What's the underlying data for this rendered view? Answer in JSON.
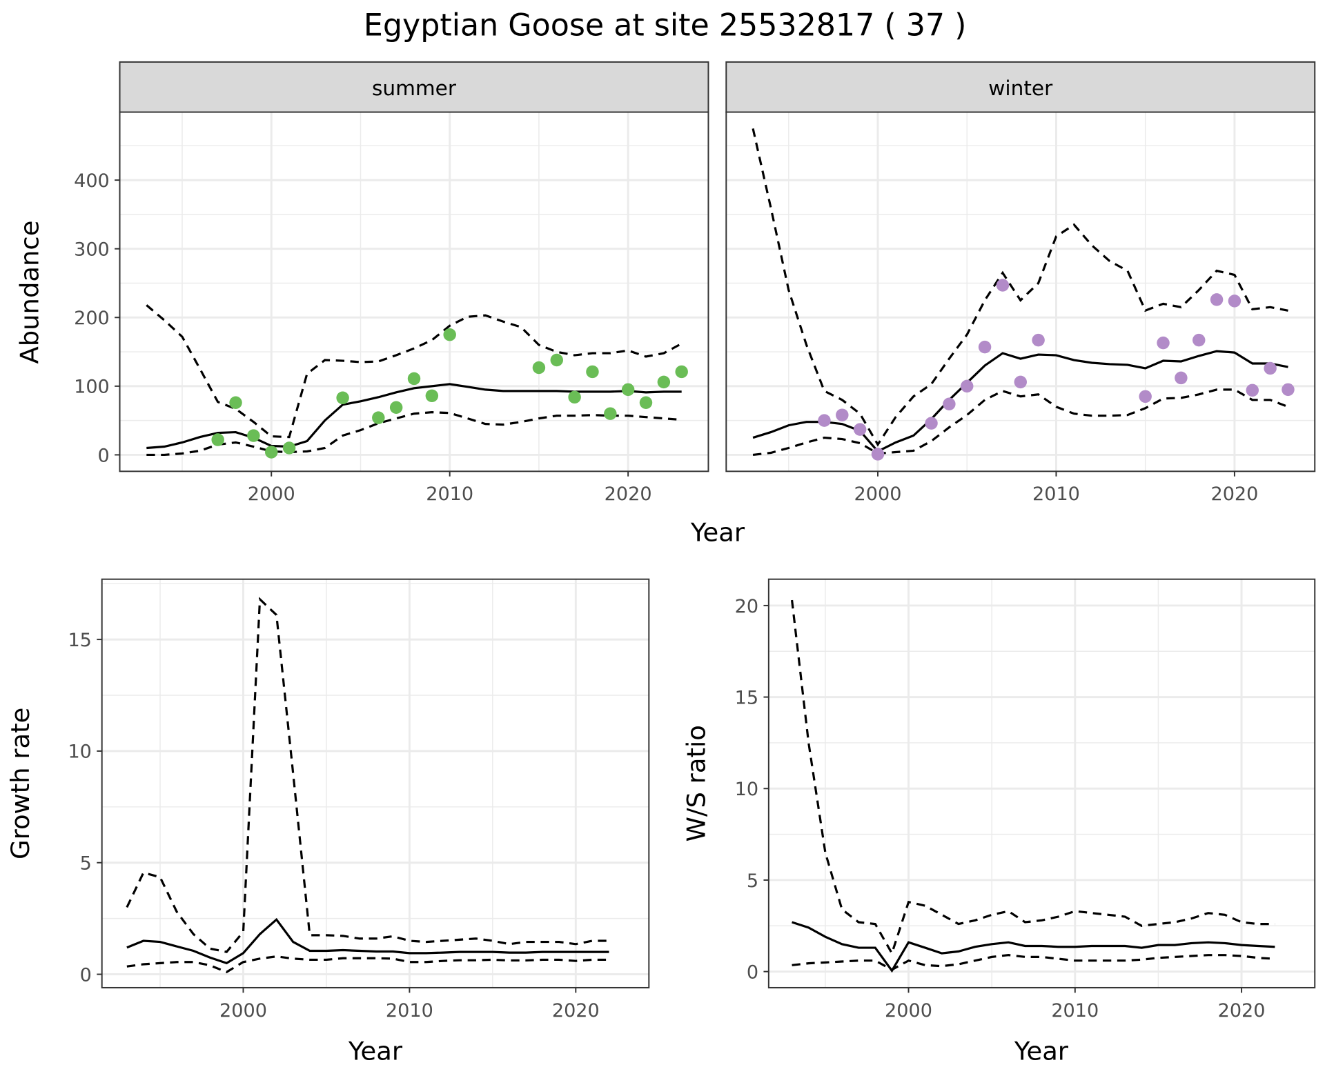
{
  "title": "Egyptian Goose at site 25532817 ( 37 )",
  "colors": {
    "summer_points": "#6ABD56",
    "winter_points": "#B28BC8",
    "lines": "#000000",
    "strip_fill": "#D9D9D9",
    "grid": "#EBEBEB"
  },
  "chart_data": [
    {
      "type": "line+scatter",
      "facet": "summer",
      "xlabel": "Year",
      "ylabel": "Abundance",
      "xlim": [
        1991.5,
        2024.5
      ],
      "ylim": [
        -24,
        499
      ],
      "xticks": [
        2000,
        2010,
        2020
      ],
      "yticks": [
        0,
        100,
        200,
        300,
        400
      ],
      "grid": true,
      "point_color": "#6ABD56",
      "points": {
        "x": [
          1997,
          1998,
          1999,
          2000,
          2001,
          2004,
          2006,
          2007,
          2008,
          2009,
          2010,
          2015,
          2016,
          2017,
          2018,
          2019,
          2020,
          2021,
          2022,
          2023
        ],
        "y": [
          22,
          76,
          28,
          4,
          10,
          83,
          54,
          69,
          111,
          86,
          175,
          127,
          138,
          84,
          121,
          60,
          95,
          76,
          106,
          121
        ]
      },
      "x": [
        1993,
        1994,
        1995,
        1996,
        1997,
        1998,
        1999,
        2000,
        2001,
        2002,
        2003,
        2004,
        2005,
        2006,
        2007,
        2008,
        2009,
        2010,
        2011,
        2012,
        2013,
        2014,
        2015,
        2016,
        2017,
        2018,
        2019,
        2020,
        2021,
        2022,
        2023
      ],
      "mean": [
        10,
        12,
        18,
        26,
        32,
        33,
        25,
        13,
        12,
        20,
        50,
        73,
        78,
        84,
        91,
        97,
        100,
        103,
        99,
        95,
        93,
        93,
        93,
        93,
        92,
        92,
        92,
        93,
        91,
        92,
        92
      ],
      "upper": [
        218,
        196,
        172,
        125,
        77,
        67,
        48,
        27,
        26,
        118,
        138,
        137,
        135,
        136,
        145,
        155,
        167,
        188,
        201,
        203,
        194,
        186,
        160,
        150,
        145,
        148,
        148,
        152,
        143,
        148,
        162
      ],
      "lower": [
        0,
        0,
        2,
        6,
        15,
        18,
        12,
        5,
        4,
        5,
        10,
        28,
        36,
        46,
        53,
        60,
        62,
        61,
        53,
        45,
        44,
        48,
        53,
        57,
        57,
        58,
        57,
        57,
        55,
        53,
        51
      ]
    },
    {
      "type": "line+scatter",
      "facet": "winter",
      "xlabel": "Year",
      "ylabel": "Abundance",
      "xlim": [
        1991.5,
        2024.5
      ],
      "ylim": [
        -24,
        499
      ],
      "xticks": [
        2000,
        2010,
        2020
      ],
      "yticks": [
        0,
        100,
        200,
        300,
        400
      ],
      "grid": true,
      "point_color": "#B28BC8",
      "points": {
        "x": [
          1997,
          1998,
          1999,
          2000,
          2003,
          2004,
          2005,
          2006,
          2007,
          2008,
          2009,
          2015,
          2016,
          2017,
          2018,
          2019,
          2020,
          2021,
          2022,
          2023
        ],
        "y": [
          50,
          58,
          37,
          1,
          46,
          74,
          100,
          157,
          247,
          106,
          167,
          85,
          163,
          112,
          167,
          226,
          224,
          94,
          126,
          95
        ]
      },
      "x": [
        1993,
        1994,
        1995,
        1996,
        1997,
        1998,
        1999,
        2000,
        2001,
        2002,
        2003,
        2004,
        2005,
        2006,
        2007,
        2008,
        2009,
        2010,
        2011,
        2012,
        2013,
        2014,
        2015,
        2016,
        2017,
        2018,
        2019,
        2020,
        2021,
        2022,
        2023
      ],
      "mean": [
        25,
        33,
        43,
        48,
        48,
        45,
        35,
        5,
        18,
        28,
        52,
        80,
        105,
        130,
        148,
        140,
        146,
        145,
        138,
        134,
        132,
        131,
        126,
        137,
        136,
        144,
        151,
        149,
        133,
        133,
        128
      ],
      "upper": [
        475,
        360,
        240,
        160,
        93,
        80,
        60,
        15,
        55,
        85,
        103,
        140,
        175,
        225,
        265,
        225,
        250,
        318,
        335,
        305,
        282,
        268,
        210,
        220,
        215,
        240,
        268,
        262,
        212,
        215,
        210
      ],
      "lower": [
        0,
        3,
        10,
        18,
        25,
        23,
        17,
        2,
        4,
        6,
        20,
        40,
        58,
        80,
        93,
        85,
        88,
        70,
        60,
        57,
        57,
        58,
        68,
        82,
        83,
        88,
        95,
        95,
        80,
        80,
        70
      ]
    },
    {
      "type": "line",
      "xlabel": "Year",
      "ylabel": "Growth rate",
      "xlim": [
        1991.5,
        2024.4
      ],
      "ylim": [
        -0.6,
        17.7
      ],
      "xticks": [
        2000,
        2010,
        2020
      ],
      "yticks": [
        0,
        5,
        10,
        15
      ],
      "grid": true,
      "x": [
        1993,
        1994,
        1995,
        1996,
        1997,
        1998,
        1999,
        2000,
        2001,
        2002,
        2003,
        2004,
        2005,
        2006,
        2007,
        2008,
        2009,
        2010,
        2011,
        2012,
        2013,
        2014,
        2015,
        2016,
        2017,
        2018,
        2019,
        2020,
        2021,
        2022
      ],
      "mean": [
        1.2,
        1.5,
        1.45,
        1.25,
        1.05,
        0.75,
        0.5,
        0.95,
        1.8,
        2.45,
        1.45,
        1.05,
        1.05,
        1.08,
        1.05,
        1.02,
        1.02,
        0.95,
        0.95,
        0.97,
        1.0,
        1.0,
        1.0,
        0.97,
        0.97,
        1.0,
        1.0,
        1.0,
        1.0,
        1.0
      ],
      "upper": [
        3.0,
        4.55,
        4.35,
        2.8,
        1.8,
        1.15,
        1.0,
        1.9,
        16.8,
        16.1,
        9.0,
        1.75,
        1.75,
        1.72,
        1.6,
        1.6,
        1.7,
        1.5,
        1.45,
        1.5,
        1.55,
        1.6,
        1.5,
        1.35,
        1.45,
        1.45,
        1.45,
        1.35,
        1.5,
        1.5
      ],
      "lower": [
        0.35,
        0.45,
        0.5,
        0.55,
        0.55,
        0.4,
        0.1,
        0.55,
        0.7,
        0.8,
        0.7,
        0.65,
        0.65,
        0.72,
        0.72,
        0.72,
        0.7,
        0.55,
        0.55,
        0.6,
        0.63,
        0.63,
        0.65,
        0.62,
        0.62,
        0.65,
        0.65,
        0.6,
        0.65,
        0.65
      ]
    },
    {
      "type": "line",
      "xlabel": "Year",
      "ylabel": "W/S ratio",
      "xlim": [
        1991.6,
        2024.4
      ],
      "ylim": [
        -0.88,
        21.44
      ],
      "xticks": [
        2000,
        2010,
        2020
      ],
      "yticks": [
        0,
        5,
        10,
        15,
        20
      ],
      "grid": true,
      "x": [
        1993,
        1994,
        1995,
        1996,
        1997,
        1998,
        1999,
        2000,
        2001,
        2002,
        2003,
        2004,
        2005,
        2006,
        2007,
        2008,
        2009,
        2010,
        2011,
        2012,
        2013,
        2014,
        2015,
        2016,
        2017,
        2018,
        2019,
        2020,
        2021,
        2022
      ],
      "mean": [
        2.7,
        2.4,
        1.9,
        1.5,
        1.3,
        1.3,
        0.05,
        1.6,
        1.3,
        1.0,
        1.1,
        1.35,
        1.5,
        1.6,
        1.4,
        1.4,
        1.35,
        1.35,
        1.4,
        1.4,
        1.4,
        1.3,
        1.45,
        1.45,
        1.55,
        1.6,
        1.55,
        1.45,
        1.4,
        1.35
      ],
      "upper": [
        20.3,
        12.5,
        6.5,
        3.4,
        2.7,
        2.6,
        1.0,
        3.8,
        3.6,
        3.1,
        2.6,
        2.8,
        3.1,
        3.3,
        2.7,
        2.8,
        3.0,
        3.3,
        3.2,
        3.1,
        3.0,
        2.5,
        2.6,
        2.7,
        2.9,
        3.2,
        3.1,
        2.7,
        2.6,
        2.6
      ],
      "lower": [
        0.35,
        0.45,
        0.5,
        0.55,
        0.6,
        0.6,
        0.1,
        0.6,
        0.35,
        0.3,
        0.4,
        0.6,
        0.8,
        0.9,
        0.8,
        0.8,
        0.7,
        0.6,
        0.6,
        0.6,
        0.6,
        0.65,
        0.75,
        0.8,
        0.85,
        0.9,
        0.9,
        0.85,
        0.75,
        0.7
      ]
    }
  ]
}
